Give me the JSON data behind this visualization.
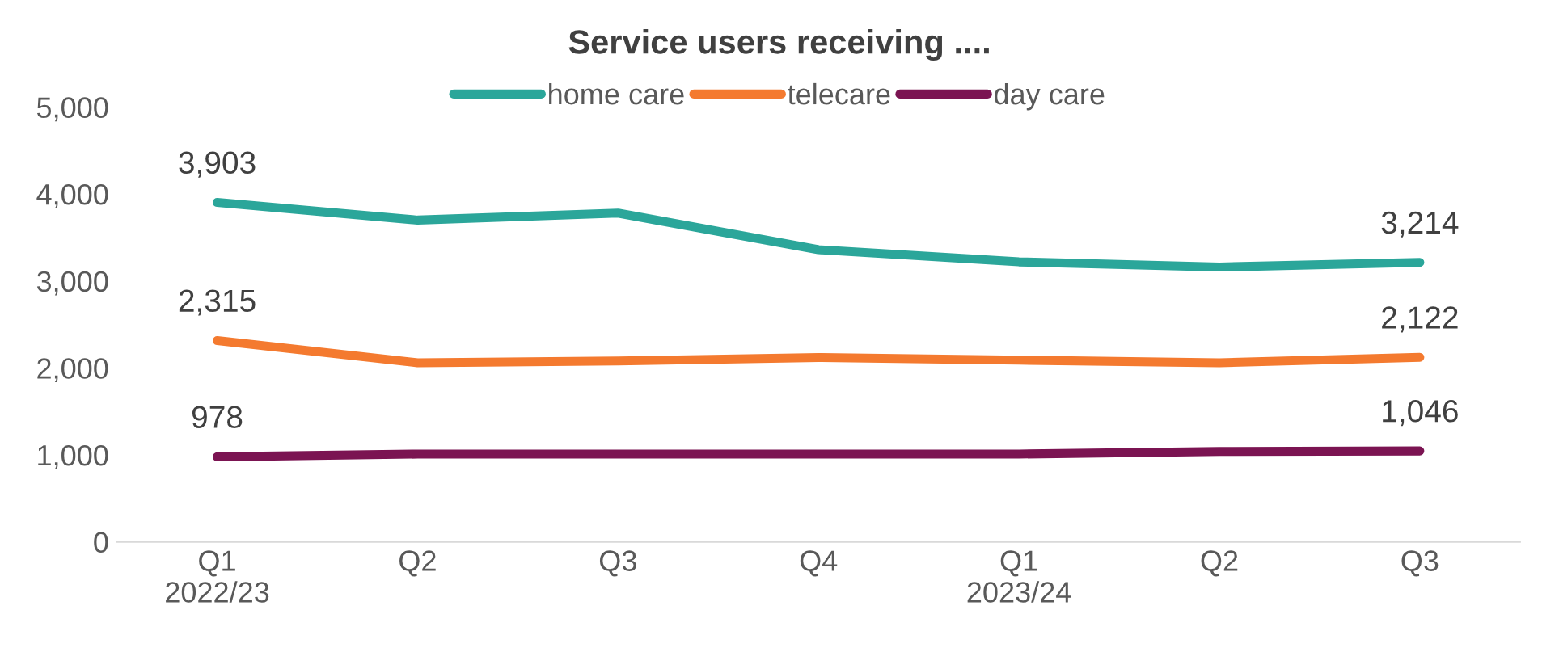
{
  "chart_data": {
    "type": "line",
    "title": "Service users receiving ....",
    "categories": [
      "Q1\n2022/23",
      "Q2",
      "Q3",
      "Q4",
      "Q1\n2023/24",
      "Q2",
      "Q3"
    ],
    "series": [
      {
        "name": "home care",
        "color": "#2ba69a",
        "values": [
          3903,
          3700,
          3780,
          3360,
          3220,
          3160,
          3214
        ],
        "value_labels": [
          "3,903",
          null,
          null,
          null,
          null,
          null,
          "3,214"
        ]
      },
      {
        "name": "telecare",
        "color": "#f47a2f",
        "values": [
          2315,
          2060,
          2080,
          2120,
          2090,
          2060,
          2122
        ],
        "value_labels": [
          "2,315",
          null,
          null,
          null,
          null,
          null,
          "2,122"
        ]
      },
      {
        "name": "day care",
        "color": "#7b1452",
        "values": [
          978,
          1010,
          1010,
          1010,
          1010,
          1040,
          1046
        ],
        "value_labels": [
          "978",
          null,
          null,
          null,
          null,
          null,
          "1,046"
        ]
      }
    ],
    "ylim": [
      0,
      5000
    ],
    "yticks": [
      {
        "value": 0,
        "label": "0"
      },
      {
        "value": 1000,
        "label": "1,000"
      },
      {
        "value": 2000,
        "label": "2,000"
      },
      {
        "value": 3000,
        "label": "3,000"
      },
      {
        "value": 4000,
        "label": "4,000"
      },
      {
        "value": 5000,
        "label": "5,000"
      }
    ],
    "grid": false,
    "legend": "top",
    "marker": "none",
    "line_style": "solid"
  }
}
